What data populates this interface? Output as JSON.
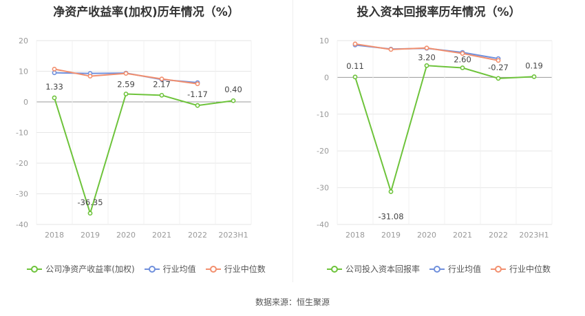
{
  "footer": {
    "source": "数据来源：恒生聚源"
  },
  "colors": {
    "company": "#6dc33a",
    "industry_avg": "#6f8fdc",
    "industry_median": "#f28f6e",
    "grid": "#e6e6e6",
    "zero_axis": "#999999"
  },
  "chart_data": [
    {
      "type": "line",
      "title": "净资产收益率(加权)历年情况（%）",
      "categories": [
        "2018",
        "2019",
        "2020",
        "2021",
        "2022",
        "2023H1"
      ],
      "ylim": [
        -40,
        20
      ],
      "yticks": [
        20,
        10,
        0,
        -10,
        -20,
        -30,
        -40
      ],
      "grid": true,
      "legend_position": "bottom",
      "series": [
        {
          "name": "公司净资产收益率(加权)",
          "color": "#6dc33a",
          "values": [
            1.33,
            -36.35,
            2.59,
            2.17,
            -1.17,
            0.4
          ],
          "labels": [
            "1.33",
            "-36.35",
            "2.59",
            "2.17",
            "-1.17",
            "0.40"
          ]
        },
        {
          "name": "行业均值",
          "color": "#6f8fdc",
          "values": [
            9.5,
            9.3,
            9.4,
            7.3,
            6.3,
            null
          ]
        },
        {
          "name": "行业中位数",
          "color": "#f28f6e",
          "values": [
            10.7,
            8.4,
            9.3,
            7.5,
            5.9,
            null
          ]
        }
      ]
    },
    {
      "type": "line",
      "title": "投入资本回报率历年情况（%）",
      "categories": [
        "2018",
        "2019",
        "2020",
        "2021",
        "2022",
        "2023H1"
      ],
      "ylim": [
        -40,
        10
      ],
      "yticks": [
        10,
        0,
        -10,
        -20,
        -30,
        -40
      ],
      "grid": true,
      "legend_position": "bottom",
      "series": [
        {
          "name": "公司投入资本回报率",
          "color": "#6dc33a",
          "values": [
            0.11,
            -31.08,
            3.2,
            2.6,
            -0.27,
            0.19
          ],
          "labels": [
            "0.11",
            "-31.08",
            "3.20",
            "2.60",
            "-0.27",
            "0.19"
          ]
        },
        {
          "name": "行业均值",
          "color": "#6f8fdc",
          "values": [
            8.8,
            7.7,
            7.9,
            6.8,
            5.1,
            null
          ]
        },
        {
          "name": "行业中位数",
          "color": "#f28f6e",
          "values": [
            9.1,
            7.6,
            8.0,
            6.5,
            4.6,
            null
          ]
        }
      ]
    }
  ]
}
